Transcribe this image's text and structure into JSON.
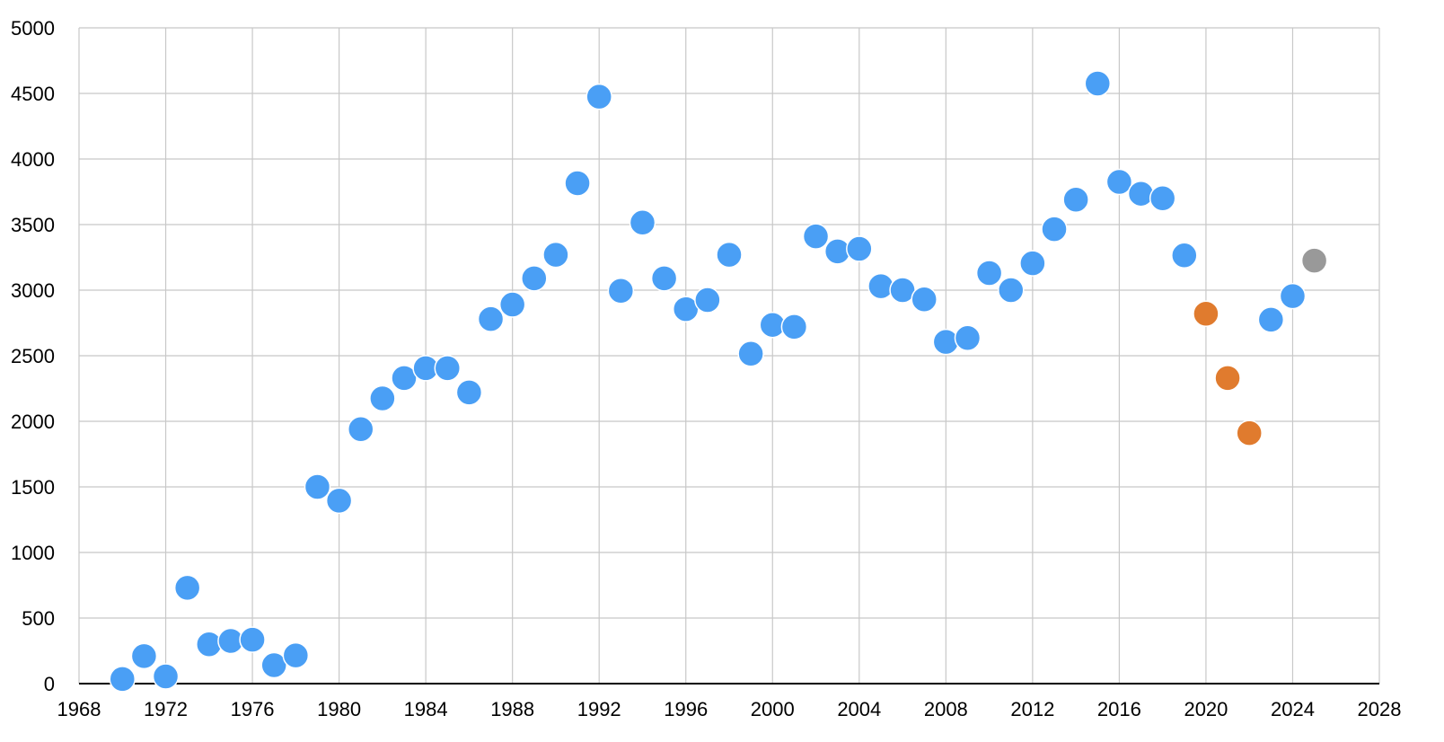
{
  "chart_data": {
    "type": "scatter",
    "title": "",
    "xlabel": "",
    "ylabel": "",
    "xlim": [
      1968,
      2028
    ],
    "ylim": [
      0,
      5000
    ],
    "x_ticks": [
      1968,
      1972,
      1976,
      1980,
      1984,
      1988,
      1992,
      1996,
      2000,
      2004,
      2008,
      2012,
      2016,
      2020,
      2024,
      2028
    ],
    "y_ticks": [
      0,
      500,
      1000,
      1500,
      2000,
      2500,
      3000,
      3500,
      4000,
      4500,
      5000
    ],
    "grid": true,
    "legend": "none",
    "series": [
      {
        "color": "#4a9ff5",
        "x": [
          1970,
          1971,
          1972,
          1973,
          1974,
          1975,
          1976,
          1977,
          1978,
          1979,
          1980,
          1981,
          1982,
          1983,
          1984,
          1985,
          1986,
          1987,
          1988,
          1989,
          1990,
          1991,
          1992,
          1993,
          1994,
          1995,
          1996,
          1997,
          1998,
          1999,
          2000,
          2001,
          2002,
          2003,
          2004,
          2005,
          2006,
          2007,
          2008,
          2009,
          2010,
          2011,
          2012,
          2013,
          2014,
          2015,
          2016,
          2017,
          2018,
          2019,
          2023,
          2024
        ],
        "y": [
          35,
          210,
          55,
          730,
          300,
          325,
          335,
          140,
          215,
          1500,
          1395,
          1940,
          2175,
          2330,
          2405,
          2405,
          2220,
          2780,
          2890,
          3090,
          3270,
          3815,
          4475,
          2995,
          3515,
          3090,
          2855,
          2925,
          3270,
          2515,
          2735,
          2720,
          3410,
          3295,
          3315,
          3030,
          3000,
          2930,
          2605,
          2635,
          3130,
          3000,
          3205,
          3465,
          3690,
          4575,
          3825,
          3735,
          3700,
          3265,
          2775,
          2955
        ]
      },
      {
        "color": "#e07b2e",
        "x": [
          2020,
          2021,
          2022
        ],
        "y": [
          2820,
          2330,
          1910
        ]
      },
      {
        "color": "#999999",
        "x": [
          2025
        ],
        "y": [
          3225
        ]
      }
    ]
  }
}
